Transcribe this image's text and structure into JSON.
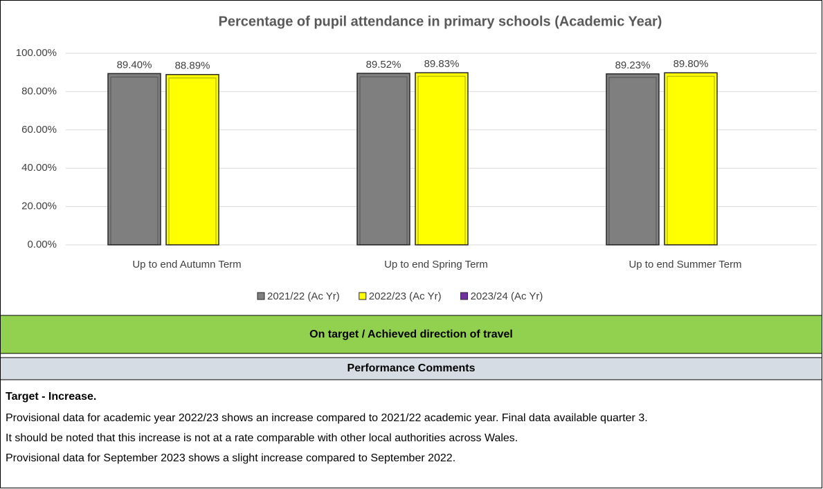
{
  "chart_data": {
    "type": "bar",
    "title": "Percentage of pupil attendance in primary schools (Academic Year)",
    "categories": [
      "Up to end Autumn Term",
      "Up to end Spring Term",
      "Up to end Summer Term"
    ],
    "series": [
      {
        "name": "2021/22 (Ac Yr)",
        "color": "#7f7f7f",
        "values": [
          89.4,
          89.52,
          89.23
        ],
        "value_labels": [
          "89.40%",
          "89.52%",
          "89.23%"
        ]
      },
      {
        "name": "2022/23 (Ac Yr)",
        "color": "#ffff00",
        "values": [
          88.89,
          89.83,
          89.8
        ],
        "value_labels": [
          "88.89%",
          "89.83%",
          "89.80%"
        ]
      },
      {
        "name": "2023/24 (Ac Yr)",
        "color": "#7030a0",
        "values": [
          null,
          null,
          null
        ]
      }
    ],
    "ylim": [
      0,
      100
    ],
    "yticks": [
      {
        "value": 0,
        "label": "0.00%"
      },
      {
        "value": 20,
        "label": "20.00%"
      },
      {
        "value": 40,
        "label": "40.00%"
      },
      {
        "value": 60,
        "label": "60.00%"
      },
      {
        "value": 80,
        "label": "80.00%"
      },
      {
        "value": 100,
        "label": "100.00%"
      }
    ],
    "grid": true,
    "legend": "bottom"
  },
  "status": "On target / Achieved direction of travel",
  "comments": {
    "heading": "Performance Comments",
    "lines": [
      "Target - Increase.",
      "Provisional data for academic year 2022/23 shows an increase compared to 2021/22 academic year. Final data available quarter 3.",
      "It should be noted that this increase is not at a rate comparable with other local authorities across Wales.",
      "Provisional data for September 2023 shows a slight increase compared to September 2022."
    ]
  }
}
